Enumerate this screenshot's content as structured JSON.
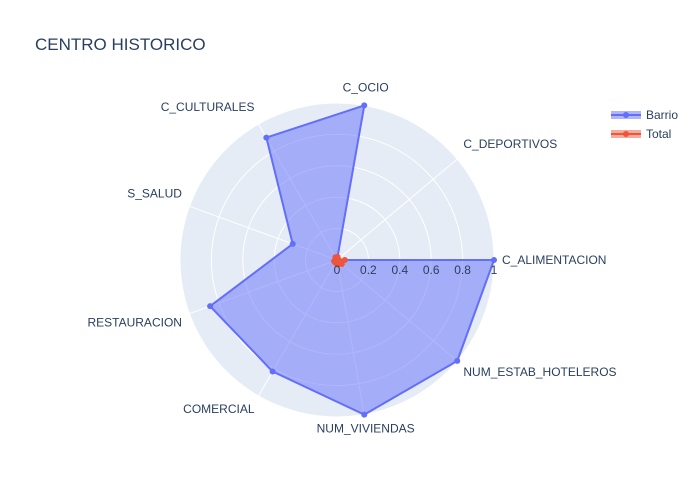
{
  "chart_data": {
    "type": "radar",
    "title": "CENTRO HISTORICO",
    "categories": [
      "C_ALIMENTACION",
      "C_DEPORTIVOS",
      "C_OCIO",
      "C_CULTURALES",
      "S_SALUD",
      "RESTAURACION",
      "COMERCIAL",
      "NUM_VIVIENDAS",
      "NUM_ESTAB_HOTELEROS"
    ],
    "radial_ticks": [
      "0",
      "0.2",
      "0.4",
      "0.6",
      "0.8",
      "1"
    ],
    "rlim": [
      0,
      1
    ],
    "legend_position": "top-right",
    "grid": true,
    "series": [
      {
        "name": "Barrio",
        "color": "#636efa",
        "values": [
          1.0,
          0.0,
          1.0,
          0.9,
          0.3,
          0.86,
          0.82,
          1.0,
          1.0
        ]
      },
      {
        "name": "Total",
        "color": "#ef553b",
        "values": [
          0.05,
          0.01,
          0.02,
          0.02,
          0.01,
          0.02,
          0.02,
          0.03,
          0.04
        ]
      }
    ]
  }
}
